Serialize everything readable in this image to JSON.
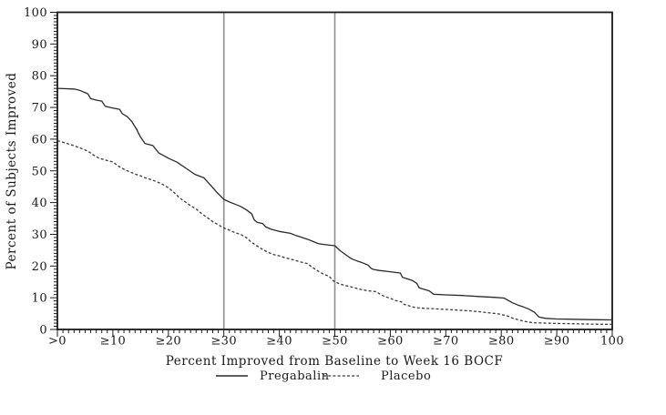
{
  "figure": {
    "background": "#ffffff"
  },
  "chart_data": {
    "type": "line",
    "subtype": "cumulative-responder-curve",
    "title": "",
    "xlabel": "Percent Improved from Baseline to Week 16 BOCF",
    "ylabel": "Percent of Subjects Improved",
    "xlim": [
      0,
      100
    ],
    "ylim": [
      0,
      100
    ],
    "grid": false,
    "x_tick_values": [
      0,
      10,
      20,
      30,
      40,
      50,
      60,
      70,
      80,
      90,
      100
    ],
    "x_tick_labels": [
      ">0",
      "≥10",
      "≥20",
      "≥30",
      "≥40",
      "≥50",
      "≥60",
      "≥70",
      "≥80",
      "≥90",
      "100"
    ],
    "y_tick_values": [
      0,
      10,
      20,
      30,
      40,
      50,
      60,
      70,
      80,
      90,
      100
    ],
    "y_tick_labels": [
      "0",
      "10",
      "20",
      "30",
      "40",
      "50",
      "60",
      "70",
      "80",
      "90",
      "100"
    ],
    "minor_tick_step": 1,
    "reference_lines_x": [
      30,
      50
    ],
    "legend": {
      "position": "bottom",
      "entries": [
        "Pregabalin",
        "Placebo"
      ]
    },
    "series": [
      {
        "name": "Pregabalin",
        "line_style": "solid",
        "color": "#2a2a2a",
        "points": [
          [
            0,
            76
          ],
          [
            3,
            75.8
          ],
          [
            4,
            75.4
          ],
          [
            5.5,
            74.3
          ],
          [
            6,
            72.8
          ],
          [
            7,
            72.3
          ],
          [
            8,
            72
          ],
          [
            8.6,
            70.4
          ],
          [
            10,
            69.8
          ],
          [
            11.2,
            69.4
          ],
          [
            11.7,
            68
          ],
          [
            12.6,
            67.1
          ],
          [
            13.4,
            65.6
          ],
          [
            14.3,
            63
          ],
          [
            15,
            60.6
          ],
          [
            15.8,
            58.6
          ],
          [
            17.2,
            58
          ],
          [
            18.3,
            55.6
          ],
          [
            20,
            54
          ],
          [
            21.6,
            52.7
          ],
          [
            23.2,
            50.8
          ],
          [
            24.8,
            48.9
          ],
          [
            26.4,
            47.8
          ],
          [
            27.6,
            45.5
          ],
          [
            28.7,
            43.3
          ],
          [
            30,
            41
          ],
          [
            31,
            40.2
          ],
          [
            32,
            39.5
          ],
          [
            33,
            38.8
          ],
          [
            34,
            37.8
          ],
          [
            35,
            36.5
          ],
          [
            35.5,
            34.5
          ],
          [
            36,
            33.8
          ],
          [
            37,
            33.4
          ],
          [
            37.5,
            32.4
          ],
          [
            38.5,
            31.6
          ],
          [
            40,
            30.9
          ],
          [
            42,
            30.3
          ],
          [
            43,
            29.6
          ],
          [
            45,
            28.5
          ],
          [
            46,
            27.8
          ],
          [
            47,
            27.1
          ],
          [
            48,
            26.8
          ],
          [
            50,
            26.4
          ],
          [
            51,
            24.8
          ],
          [
            52,
            23.5
          ],
          [
            53,
            22.3
          ],
          [
            54,
            21.6
          ],
          [
            55,
            21
          ],
          [
            56,
            20.3
          ],
          [
            56.5,
            19.3
          ],
          [
            57,
            18.9
          ],
          [
            58,
            18.6
          ],
          [
            60,
            18.2
          ],
          [
            61.8,
            17.8
          ],
          [
            62.2,
            16.4
          ],
          [
            63,
            16
          ],
          [
            64,
            15.4
          ],
          [
            64.8,
            14.5
          ],
          [
            65.2,
            13.1
          ],
          [
            66,
            12.7
          ],
          [
            67,
            12.2
          ],
          [
            67.8,
            11.1
          ],
          [
            70,
            10.9
          ],
          [
            73,
            10.7
          ],
          [
            76,
            10.4
          ],
          [
            79,
            10.1
          ],
          [
            80.5,
            9.9
          ],
          [
            81,
            9.4
          ],
          [
            82,
            8.4
          ],
          [
            83,
            7.7
          ],
          [
            84,
            7.1
          ],
          [
            85,
            6.4
          ],
          [
            86,
            5.4
          ],
          [
            86.8,
            3.9
          ],
          [
            88,
            3.5
          ],
          [
            90,
            3.3
          ],
          [
            93,
            3.2
          ],
          [
            96,
            3.1
          ],
          [
            100,
            3
          ]
        ]
      },
      {
        "name": "Placebo",
        "line_style": "dashed",
        "color": "#3a3a3a",
        "points": [
          [
            0,
            59.5
          ],
          [
            2,
            58.5
          ],
          [
            4,
            57.3
          ],
          [
            5.5,
            56.2
          ],
          [
            6.5,
            55
          ],
          [
            7.5,
            54
          ],
          [
            8.5,
            53.5
          ],
          [
            10,
            52.8
          ],
          [
            11,
            51.5
          ],
          [
            12,
            50.5
          ],
          [
            13,
            49.7
          ],
          [
            14,
            49
          ],
          [
            15,
            48.4
          ],
          [
            16,
            47.7
          ],
          [
            17,
            47.2
          ],
          [
            18,
            46.5
          ],
          [
            19,
            45.7
          ],
          [
            20,
            44.7
          ],
          [
            21,
            43.2
          ],
          [
            22,
            41.5
          ],
          [
            23,
            40.3
          ],
          [
            24,
            39
          ],
          [
            25,
            38
          ],
          [
            26,
            36.5
          ],
          [
            27,
            35.3
          ],
          [
            28,
            34
          ],
          [
            29,
            33
          ],
          [
            30,
            32
          ],
          [
            31,
            31.3
          ],
          [
            32,
            30.5
          ],
          [
            33,
            30
          ],
          [
            34,
            29
          ],
          [
            35,
            27.5
          ],
          [
            36,
            26.3
          ],
          [
            37,
            25.2
          ],
          [
            38,
            24.3
          ],
          [
            39,
            23.6
          ],
          [
            40,
            23.2
          ],
          [
            41,
            22.6
          ],
          [
            42,
            22.2
          ],
          [
            43,
            21.7
          ],
          [
            44,
            21.2
          ],
          [
            45,
            20.8
          ],
          [
            46,
            19.5
          ],
          [
            47,
            18.4
          ],
          [
            48,
            17.4
          ],
          [
            49,
            16.8
          ],
          [
            49.5,
            15.6
          ],
          [
            50,
            15
          ],
          [
            51,
            14.3
          ],
          [
            52,
            13.8
          ],
          [
            53,
            13.4
          ],
          [
            54,
            12.9
          ],
          [
            55,
            12.5
          ],
          [
            56,
            12.2
          ],
          [
            57.5,
            11.9
          ],
          [
            58,
            11.3
          ],
          [
            59,
            10.4
          ],
          [
            60,
            9.8
          ],
          [
            61,
            9.1
          ],
          [
            62,
            8.7
          ],
          [
            62.5,
            7.9
          ],
          [
            63.5,
            7.4
          ],
          [
            64.5,
            6.9
          ],
          [
            66,
            6.7
          ],
          [
            68,
            6.5
          ],
          [
            70,
            6.3
          ],
          [
            72,
            6.1
          ],
          [
            74,
            5.9
          ],
          [
            76,
            5.6
          ],
          [
            78,
            5.2
          ],
          [
            79.5,
            4.9
          ],
          [
            81,
            4.3
          ],
          [
            82,
            3.6
          ],
          [
            83,
            3.1
          ],
          [
            84,
            2.6
          ],
          [
            85,
            2.3
          ],
          [
            86,
            2.1
          ],
          [
            88,
            2
          ],
          [
            90,
            1.9
          ],
          [
            93,
            1.8
          ],
          [
            96,
            1.7
          ],
          [
            100,
            1.6
          ]
        ]
      }
    ],
    "colors": {
      "axis": "#1a1a1a",
      "reference_line": "#8f8f8f",
      "pregabalin_line": "#2a2a2a",
      "placebo_line": "#3a3a3a",
      "background": "#ffffff"
    }
  }
}
